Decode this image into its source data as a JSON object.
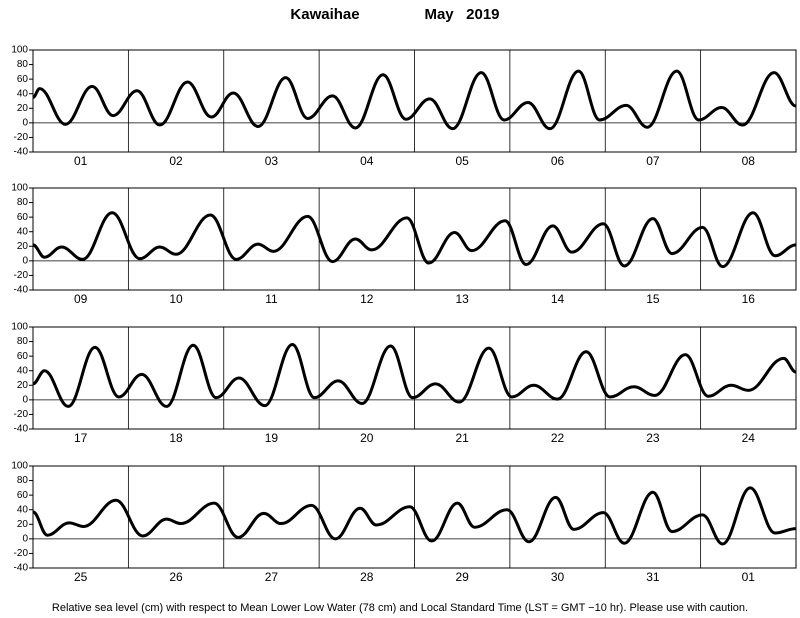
{
  "title": "Kawaihae",
  "date": "May   2019",
  "note": "Relative sea level (cm) with respect to Mean Lower Low Water (78 cm) and Local Standard Time (LST = GMT −10 hr). Please use with caution.",
  "chart_data": [
    {
      "type": "line",
      "categories": [
        "01",
        "02",
        "03",
        "04",
        "05",
        "06",
        "07",
        "08"
      ],
      "xlim": [
        0,
        8
      ],
      "ylim": [
        -40,
        100
      ],
      "yticks": [
        -40,
        -20,
        0,
        20,
        40,
        60,
        80,
        100
      ],
      "color": "#000000",
      "x": [
        0,
        0.07,
        0.34,
        0.62,
        0.84,
        1.09,
        1.33,
        1.62,
        1.87,
        2.1,
        2.36,
        2.65,
        2.88,
        3.14,
        3.38,
        3.67,
        3.91,
        4.16,
        4.4,
        4.7,
        4.94,
        5.19,
        5.42,
        5.72,
        5.94,
        6.22,
        6.44,
        6.75,
        6.98,
        7.22,
        7.44,
        7.77,
        8
      ],
      "values": [
        35,
        47,
        -2,
        50,
        10,
        44,
        -3,
        56,
        8,
        41,
        -5,
        62,
        6,
        37,
        -7,
        66,
        5,
        33,
        -8,
        69,
        4,
        28,
        -8,
        71,
        4,
        24,
        -6,
        71,
        4,
        21,
        -3,
        69,
        23
      ]
    },
    {
      "type": "line",
      "categories": [
        "09",
        "10",
        "11",
        "12",
        "13",
        "14",
        "15",
        "16"
      ],
      "xlim": [
        0,
        8
      ],
      "ylim": [
        -40,
        100
      ],
      "yticks": [
        -40,
        -20,
        0,
        20,
        40,
        60,
        80,
        100
      ],
      "color": "#000000",
      "x": [
        0,
        0.12,
        0.3,
        0.52,
        0.83,
        1.12,
        1.33,
        1.5,
        1.86,
        2.13,
        2.36,
        2.52,
        2.88,
        3.14,
        3.38,
        3.55,
        3.92,
        4.15,
        4.42,
        4.6,
        4.95,
        5.17,
        5.45,
        5.65,
        5.98,
        6.2,
        6.5,
        6.7,
        7.02,
        7.23,
        7.55,
        7.78,
        8
      ],
      "values": [
        22,
        5,
        19,
        2,
        66,
        3,
        19,
        9,
        63,
        2,
        23,
        13,
        61,
        -1,
        30,
        15,
        59,
        -3,
        39,
        14,
        55,
        -5,
        48,
        12,
        51,
        -7,
        58,
        10,
        46,
        -8,
        66,
        7,
        22
      ]
    },
    {
      "type": "line",
      "categories": [
        "17",
        "18",
        "19",
        "20",
        "21",
        "22",
        "23",
        "24"
      ],
      "xlim": [
        0,
        8
      ],
      "ylim": [
        -40,
        100
      ],
      "yticks": [
        -40,
        -20,
        0,
        20,
        40,
        60,
        80,
        100
      ],
      "color": "#000000",
      "x": [
        0,
        0.12,
        0.37,
        0.65,
        0.9,
        1.14,
        1.4,
        1.68,
        1.92,
        2.16,
        2.43,
        2.72,
        2.95,
        3.2,
        3.45,
        3.75,
        3.98,
        4.22,
        4.47,
        4.78,
        5.02,
        5.25,
        5.5,
        5.8,
        6.05,
        6.3,
        6.52,
        6.84,
        7.08,
        7.32,
        7.5,
        7.87,
        8
      ],
      "values": [
        22,
        40,
        -9,
        72,
        4,
        35,
        -9,
        75,
        3,
        30,
        -8,
        76,
        3,
        26,
        -5,
        74,
        3,
        22,
        -3,
        71,
        4,
        20,
        1,
        66,
        4,
        18,
        6,
        62,
        5,
        20,
        13,
        57,
        38
      ]
    },
    {
      "type": "line",
      "categories": [
        "25",
        "26",
        "27",
        "28",
        "29",
        "30",
        "31",
        "01"
      ],
      "xlim": [
        0,
        8
      ],
      "ylim": [
        -40,
        100
      ],
      "yticks": [
        -40,
        -20,
        0,
        20,
        40,
        60,
        80,
        100
      ],
      "color": "#000000",
      "x": [
        0,
        0.15,
        0.38,
        0.53,
        0.87,
        1.15,
        1.4,
        1.55,
        1.9,
        2.15,
        2.42,
        2.6,
        2.92,
        3.17,
        3.43,
        3.6,
        3.95,
        4.18,
        4.45,
        4.63,
        4.97,
        5.2,
        5.48,
        5.67,
        5.98,
        6.2,
        6.5,
        6.7,
        7.02,
        7.23,
        7.52,
        7.78,
        8
      ],
      "values": [
        37,
        5,
        22,
        17,
        53,
        4,
        27,
        21,
        49,
        2,
        35,
        21,
        46,
        0,
        42,
        19,
        44,
        -3,
        49,
        16,
        40,
        -4,
        57,
        13,
        36,
        -6,
        64,
        10,
        33,
        -7,
        70,
        8,
        14
      ]
    }
  ]
}
